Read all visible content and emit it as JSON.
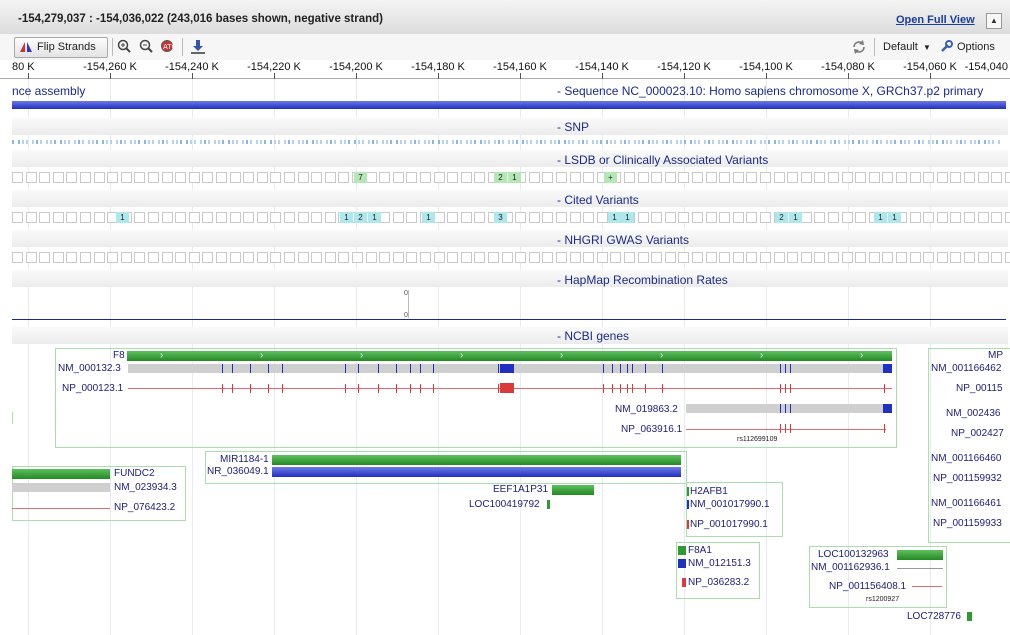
{
  "header": {
    "title": "-154,279,037 : -154,036,022 (243,016 bases shown, negative strand)",
    "open_full_view": "Open Full View",
    "collapse_glyph": "▲"
  },
  "toolbar": {
    "flip_strands": "Flip Strands",
    "default_label": "Default",
    "options_label": "Options"
  },
  "ruler": {
    "ticks": [
      "80 K",
      "-154,260 K",
      "-154,240 K",
      "-154,220 K",
      "-154,200 K",
      "-154,180 K",
      "-154,160 K",
      "-154,140 K",
      "-154,120 K",
      "-154,100 K",
      "-154,080 K",
      "-154,060 K",
      "-154,040"
    ]
  },
  "tracks": {
    "sequence_left": "nce assembly",
    "sequence": "- Sequence NC_000023.10: Homo sapiens chromosome X, GRCh37.p2 primary",
    "snp": "- SNP",
    "lsdb": "- LSDB or Clinically Associated Variants",
    "cited": "- Cited Variants",
    "nhgri": "- NHGRI GWAS Variants",
    "hapmap": "- HapMap Recombination Rates",
    "hapmap_val_top": "0",
    "hapmap_val_bottom": "0",
    "ncbi_genes": "- NCBI genes"
  },
  "lsdb_badges": [
    "7",
    "2",
    "1",
    "+"
  ],
  "cited_badges": [
    "1",
    "1",
    "2",
    "1",
    "1",
    "3",
    "1",
    "1",
    "2",
    "1",
    "1",
    "1"
  ],
  "genes": {
    "f8": "F8",
    "nm_000132": "NM_000132.3",
    "np_000123": "NP_000123.1",
    "nm_019863": "NM_019863.2",
    "np_063916": "NP_063916.1",
    "rs112699109": "rs112699109",
    "mir1184": "MIR1184-1",
    "nr_036049": "NR_036049.1",
    "fundc2": "FUNDC2",
    "nm_023934": "NM_023934.3",
    "np_076423": "NP_076423.2",
    "eef1a1p31": "EEF1A1P31",
    "loc100419792": "LOC100419792",
    "h2afb1": "H2AFB1",
    "nm_001017990": "NM_001017990.1",
    "np_001017990": "NP_001017990.1",
    "f8a1": "F8A1",
    "nm_012151": "NM_012151.3",
    "np_036283": "NP_036283.2",
    "loc100132963": "LOC100132963",
    "nm_001162936": "NM_001162936.1",
    "np_001156408": "NP_001156408.1",
    "rs1200927": "rs1200927",
    "loc728776": "LOC728776",
    "mp": "MP",
    "nm_001166462": "NM_001166462",
    "np_00115": "NP_00115",
    "nm_002436": "NM_002436",
    "np_002427": "NP_002427",
    "nm_001166460": "NM_001166460",
    "np_001159932": "NP_001159932",
    "nm_001166461": "NM_001166461",
    "np_001159933": "NP_001159933"
  },
  "colors": {
    "gene_green": "#2f9a2f",
    "transcript_blue": "#2030c0",
    "protein_red": "#d93a3a",
    "track_title": "#1a2a8a"
  }
}
